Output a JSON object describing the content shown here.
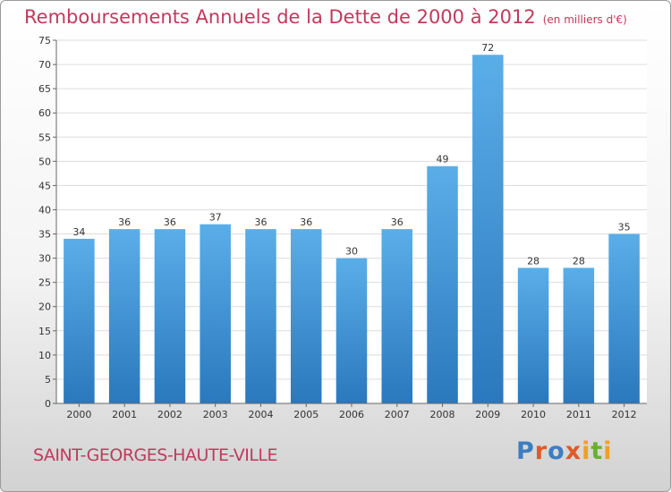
{
  "title": "Remboursements Annuels de la Dette de 2000 à 2012",
  "unit_note": "(en milliers d'€)",
  "commune": "SAINT-GEORGES-HAUTE-VILLE",
  "logo_text": "Proxiti",
  "colors": {
    "accent": "#c03a5c",
    "bar_top": "#5aaee8",
    "bar_bottom": "#2a78bd"
  },
  "chart_data": {
    "type": "bar",
    "categories": [
      "2000",
      "2001",
      "2002",
      "2003",
      "2004",
      "2005",
      "2006",
      "2007",
      "2008",
      "2009",
      "2010",
      "2011",
      "2012"
    ],
    "values": [
      34,
      36,
      36,
      37,
      36,
      36,
      30,
      36,
      49,
      72,
      28,
      28,
      35
    ],
    "ylim": [
      0,
      75
    ],
    "yticks": [
      0,
      5,
      10,
      15,
      20,
      25,
      30,
      35,
      40,
      45,
      50,
      55,
      60,
      65,
      70,
      75
    ],
    "grid": true,
    "data_labels": true
  }
}
